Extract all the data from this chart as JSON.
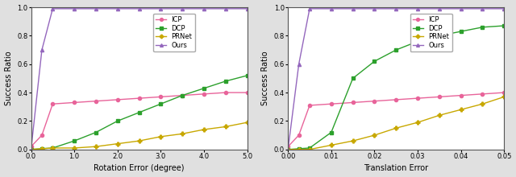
{
  "rot_x": [
    0.0,
    0.25,
    0.5,
    1.0,
    1.5,
    2.0,
    2.5,
    3.0,
    3.5,
    4.0,
    4.5,
    5.0
  ],
  "rot_icp": [
    0.02,
    0.1,
    0.32,
    0.33,
    0.34,
    0.35,
    0.36,
    0.37,
    0.38,
    0.39,
    0.4,
    0.4
  ],
  "rot_dcp": [
    0.0,
    0.005,
    0.01,
    0.06,
    0.12,
    0.2,
    0.26,
    0.32,
    0.38,
    0.43,
    0.48,
    0.52
  ],
  "rot_prnet": [
    0.0,
    0.005,
    0.01,
    0.01,
    0.02,
    0.04,
    0.06,
    0.09,
    0.11,
    0.14,
    0.16,
    0.19
  ],
  "rot_ours": [
    0.0,
    0.7,
    0.99,
    0.99,
    0.99,
    0.99,
    0.99,
    0.99,
    0.99,
    0.99,
    0.99,
    0.99
  ],
  "trans_x": [
    0.0,
    0.0025,
    0.005,
    0.01,
    0.015,
    0.02,
    0.025,
    0.03,
    0.035,
    0.04,
    0.045,
    0.05
  ],
  "trans_icp": [
    0.02,
    0.1,
    0.31,
    0.32,
    0.33,
    0.34,
    0.35,
    0.36,
    0.37,
    0.38,
    0.39,
    0.4
  ],
  "trans_dcp": [
    0.0,
    0.005,
    0.01,
    0.12,
    0.5,
    0.62,
    0.7,
    0.76,
    0.8,
    0.83,
    0.86,
    0.87
  ],
  "trans_prnet": [
    0.0,
    0.0,
    0.0,
    0.03,
    0.06,
    0.1,
    0.15,
    0.19,
    0.24,
    0.28,
    0.32,
    0.37
  ],
  "trans_ours": [
    0.0,
    0.6,
    0.99,
    0.99,
    0.99,
    0.99,
    0.99,
    0.99,
    0.99,
    0.99,
    0.99,
    0.99
  ],
  "color_icp": "#e8649a",
  "color_dcp": "#2ca02c",
  "color_prnet": "#c8a800",
  "color_ours": "#9467bd",
  "marker_icp": "o",
  "marker_dcp": "s",
  "marker_prnet": "P",
  "marker_ours": "^",
  "ylabel": "Success Ratio",
  "xlabel_rot": "Rotation Error (degree)",
  "xlabel_trans": "Translation Error",
  "rot_xlim": [
    0.0,
    5.0
  ],
  "rot_ylim": [
    0.0,
    1.0
  ],
  "trans_xlim": [
    0.0,
    0.05
  ],
  "trans_ylim": [
    0.0,
    1.0
  ],
  "rot_xticks": [
    0.0,
    1.0,
    2.0,
    3.0,
    4.0,
    5.0
  ],
  "rot_xtick_labels": [
    "0.0",
    "1.0",
    "2.0",
    "3.0",
    "4.0",
    "5.0"
  ],
  "trans_xticks": [
    0.0,
    0.01,
    0.02,
    0.03,
    0.04,
    0.05
  ],
  "trans_xtick_labels": [
    "0.00",
    "0.01",
    "0.02",
    "0.03",
    "0.04",
    "0.05"
  ],
  "yticks": [
    0.0,
    0.2,
    0.4,
    0.6,
    0.8,
    1.0
  ],
  "legend_labels": [
    "ICP",
    "DCP",
    "PRNet",
    "Ours"
  ],
  "bg_color": "#ffffff",
  "fig_bg_color": "#e0e0e0"
}
